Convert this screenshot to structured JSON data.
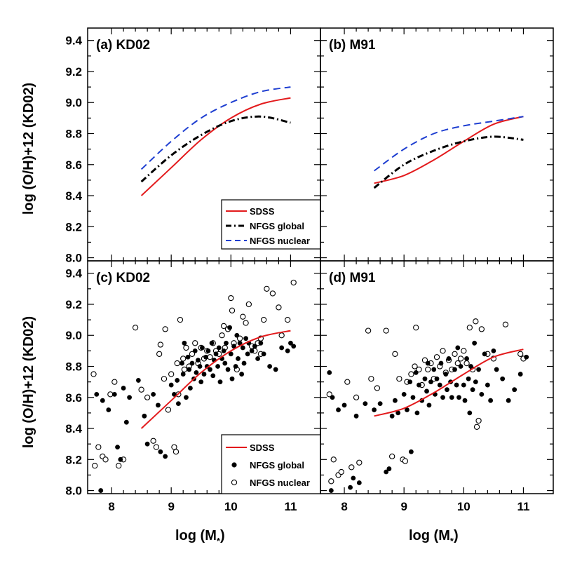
{
  "figure": {
    "ylabel": "log (O/H)+12 (KD02)",
    "xlabel_main": "log (M",
    "xlabel_sub": "*",
    "xlabel_close": ")",
    "x_ticks": [
      "8",
      "9",
      "10",
      "11"
    ],
    "y_ticks": [
      "8.0",
      "8.2",
      "8.4",
      "8.6",
      "8.8",
      "9.0",
      "9.2",
      "9.4"
    ]
  },
  "legend_top": {
    "items": [
      {
        "label": "SDSS",
        "style": "solid",
        "color": "#e31a1c"
      },
      {
        "label": "NFGS global",
        "style": "dashdot",
        "color": "#000000"
      },
      {
        "label": "NFGS nuclear",
        "style": "dashed",
        "color": "#1f3fd1"
      }
    ]
  },
  "legend_bottom": {
    "items": [
      {
        "label": "SDSS",
        "style": "solid",
        "color": "#e31a1c"
      },
      {
        "label": "NFGS global",
        "style": "filled-circle",
        "color": "#000000"
      },
      {
        "label": "NFGS nuclear",
        "style": "open-circle",
        "color": "#000000"
      }
    ]
  },
  "chart_data": [
    {
      "panel": "a",
      "type": "line",
      "title": "(a) KD02",
      "xlim": [
        7.6,
        11.5
      ],
      "ylim": [
        7.98,
        9.48
      ],
      "series": [
        {
          "name": "SDSS",
          "style": "solid",
          "color": "#e31a1c",
          "x": [
            8.5,
            9.0,
            9.5,
            10.0,
            10.5,
            11.0
          ],
          "y": [
            8.4,
            8.58,
            8.76,
            8.9,
            8.99,
            9.03
          ]
        },
        {
          "name": "NFGS global",
          "style": "dashdot",
          "color": "#000000",
          "x": [
            8.5,
            9.0,
            9.5,
            10.0,
            10.5,
            11.0
          ],
          "y": [
            8.49,
            8.66,
            8.79,
            8.88,
            8.91,
            8.87
          ]
        },
        {
          "name": "NFGS nuclear",
          "style": "dashed",
          "color": "#1f3fd1",
          "x": [
            8.5,
            9.0,
            9.5,
            10.0,
            10.5,
            11.0
          ],
          "y": [
            8.57,
            8.75,
            8.9,
            9.0,
            9.07,
            9.1
          ]
        }
      ]
    },
    {
      "panel": "b",
      "type": "line",
      "title": "(b) M91",
      "xlim": [
        7.6,
        11.5
      ],
      "ylim": [
        7.98,
        9.48
      ],
      "series": [
        {
          "name": "SDSS",
          "style": "solid",
          "color": "#e31a1c",
          "x": [
            8.5,
            9.0,
            9.5,
            10.0,
            10.5,
            11.0
          ],
          "y": [
            8.48,
            8.53,
            8.63,
            8.75,
            8.86,
            8.91
          ]
        },
        {
          "name": "NFGS global",
          "style": "dashdot",
          "color": "#000000",
          "x": [
            8.5,
            9.0,
            9.5,
            10.0,
            10.5,
            11.0
          ],
          "y": [
            8.45,
            8.6,
            8.69,
            8.75,
            8.78,
            8.76
          ]
        },
        {
          "name": "NFGS nuclear",
          "style": "dashed",
          "color": "#1f3fd1",
          "x": [
            8.5,
            9.0,
            9.5,
            10.0,
            10.5,
            11.0
          ],
          "y": [
            8.56,
            8.7,
            8.8,
            8.85,
            8.88,
            8.91
          ]
        }
      ]
    },
    {
      "panel": "c",
      "type": "scatter",
      "title": "(c) KD02",
      "xlim": [
        7.6,
        11.5
      ],
      "ylim": [
        7.98,
        9.48
      ],
      "sdss_curve": {
        "x": [
          8.5,
          9.0,
          9.5,
          10.0,
          10.5,
          11.0
        ],
        "y": [
          8.4,
          8.58,
          8.76,
          8.9,
          8.99,
          9.03
        ]
      },
      "global": [
        [
          7.75,
          8.62
        ],
        [
          7.82,
          8.0
        ],
        [
          7.85,
          8.58
        ],
        [
          7.95,
          8.52
        ],
        [
          8.05,
          8.62
        ],
        [
          8.1,
          8.28
        ],
        [
          8.15,
          8.2
        ],
        [
          8.2,
          8.66
        ],
        [
          8.25,
          8.44
        ],
        [
          8.3,
          8.6
        ],
        [
          8.45,
          8.71
        ],
        [
          8.55,
          8.48
        ],
        [
          8.6,
          8.3
        ],
        [
          8.7,
          8.62
        ],
        [
          8.78,
          8.55
        ],
        [
          8.82,
          8.25
        ],
        [
          8.9,
          8.22
        ],
        [
          9.0,
          8.68
        ],
        [
          9.05,
          8.62
        ],
        [
          9.1,
          8.71
        ],
        [
          9.12,
          8.56
        ],
        [
          9.18,
          8.82
        ],
        [
          9.2,
          8.75
        ],
        [
          9.22,
          8.95
        ],
        [
          9.25,
          8.6
        ],
        [
          9.28,
          8.86
        ],
        [
          9.3,
          8.78
        ],
        [
          9.32,
          8.66
        ],
        [
          9.35,
          8.82
        ],
        [
          9.38,
          8.72
        ],
        [
          9.4,
          8.9
        ],
        [
          9.42,
          8.76
        ],
        [
          9.45,
          8.84
        ],
        [
          9.48,
          8.8
        ],
        [
          9.5,
          8.7
        ],
        [
          9.52,
          8.92
        ],
        [
          9.55,
          8.75
        ],
        [
          9.58,
          8.86
        ],
        [
          9.6,
          8.8
        ],
        [
          9.62,
          8.9
        ],
        [
          9.65,
          8.78
        ],
        [
          9.68,
          8.95
        ],
        [
          9.7,
          8.74
        ],
        [
          9.72,
          8.84
        ],
        [
          9.75,
          8.88
        ],
        [
          9.78,
          8.8
        ],
        [
          9.8,
          8.92
        ],
        [
          9.82,
          8.7
        ],
        [
          9.85,
          8.85
        ],
        [
          9.88,
          8.9
        ],
        [
          9.9,
          8.82
        ],
        [
          9.92,
          8.95
        ],
        [
          9.95,
          8.78
        ],
        [
          9.98,
          9.05
        ],
        [
          10.0,
          8.88
        ],
        [
          10.02,
          8.72
        ],
        [
          10.05,
          8.93
        ],
        [
          10.08,
          8.8
        ],
        [
          10.1,
          9.0
        ],
        [
          10.12,
          8.85
        ],
        [
          10.15,
          8.95
        ],
        [
          10.18,
          8.75
        ],
        [
          10.2,
          8.92
        ],
        [
          10.22,
          8.82
        ],
        [
          10.25,
          8.98
        ],
        [
          10.28,
          8.88
        ],
        [
          10.3,
          8.95
        ],
        [
          10.35,
          8.9
        ],
        [
          10.4,
          8.93
        ],
        [
          10.45,
          8.85
        ],
        [
          10.5,
          8.95
        ],
        [
          10.55,
          8.88
        ],
        [
          10.65,
          8.8
        ],
        [
          10.75,
          8.78
        ],
        [
          10.85,
          8.92
        ],
        [
          10.95,
          8.9
        ],
        [
          11.0,
          8.95
        ],
        [
          11.05,
          8.93
        ]
      ],
      "nuclear": [
        [
          7.7,
          8.75
        ],
        [
          7.72,
          8.16
        ],
        [
          7.78,
          8.28
        ],
        [
          7.85,
          8.22
        ],
        [
          7.9,
          8.2
        ],
        [
          7.98,
          8.62
        ],
        [
          8.05,
          8.7
        ],
        [
          8.12,
          8.16
        ],
        [
          8.2,
          8.2
        ],
        [
          8.4,
          9.05
        ],
        [
          8.5,
          8.65
        ],
        [
          8.6,
          8.6
        ],
        [
          8.7,
          8.32
        ],
        [
          8.75,
          8.28
        ],
        [
          8.8,
          8.88
        ],
        [
          8.82,
          8.94
        ],
        [
          8.88,
          8.72
        ],
        [
          8.9,
          9.04
        ],
        [
          8.95,
          8.52
        ],
        [
          9.0,
          8.75
        ],
        [
          9.05,
          8.28
        ],
        [
          9.08,
          8.25
        ],
        [
          9.1,
          8.82
        ],
        [
          9.12,
          8.62
        ],
        [
          9.15,
          9.1
        ],
        [
          9.2,
          8.85
        ],
        [
          9.22,
          8.78
        ],
        [
          9.25,
          8.92
        ],
        [
          9.3,
          8.8
        ],
        [
          9.35,
          8.88
        ],
        [
          9.4,
          8.95
        ],
        [
          9.45,
          8.82
        ],
        [
          9.5,
          8.92
        ],
        [
          9.55,
          8.85
        ],
        [
          9.6,
          8.9
        ],
        [
          9.65,
          8.86
        ],
        [
          9.7,
          8.95
        ],
        [
          9.75,
          8.9
        ],
        [
          9.8,
          8.88
        ],
        [
          9.85,
          9.0
        ],
        [
          9.9,
          8.92
        ],
        [
          9.95,
          9.04
        ],
        [
          10.0,
          9.24
        ],
        [
          10.02,
          9.16
        ],
        [
          10.05,
          8.95
        ],
        [
          10.1,
          8.78
        ],
        [
          10.15,
          8.98
        ],
        [
          10.2,
          9.12
        ],
        [
          10.25,
          9.08
        ],
        [
          10.3,
          9.2
        ],
        [
          10.35,
          8.93
        ],
        [
          10.4,
          8.9
        ],
        [
          10.45,
          8.95
        ],
        [
          10.5,
          8.98
        ],
        [
          10.55,
          9.1
        ],
        [
          10.6,
          9.3
        ],
        [
          10.7,
          9.27
        ],
        [
          10.8,
          9.18
        ],
        [
          10.85,
          9.0
        ],
        [
          10.95,
          9.1
        ],
        [
          11.05,
          9.34
        ],
        [
          10.5,
          8.88
        ],
        [
          9.88,
          9.06
        ]
      ]
    },
    {
      "panel": "d",
      "type": "scatter",
      "title": "(d) M91",
      "xlim": [
        7.6,
        11.5
      ],
      "ylim": [
        7.98,
        9.48
      ],
      "sdss_curve": {
        "x": [
          8.5,
          9.0,
          9.5,
          10.0,
          10.5,
          11.0
        ],
        "y": [
          8.48,
          8.53,
          8.63,
          8.75,
          8.86,
          8.91
        ]
      },
      "global": [
        [
          7.75,
          8.76
        ],
        [
          7.78,
          8.0
        ],
        [
          7.8,
          8.6
        ],
        [
          7.9,
          8.52
        ],
        [
          8.0,
          8.55
        ],
        [
          8.1,
          8.02
        ],
        [
          8.15,
          8.08
        ],
        [
          8.2,
          8.48
        ],
        [
          8.25,
          8.05
        ],
        [
          8.35,
          8.56
        ],
        [
          8.5,
          8.52
        ],
        [
          8.6,
          8.56
        ],
        [
          8.7,
          8.12
        ],
        [
          8.75,
          8.14
        ],
        [
          8.8,
          8.48
        ],
        [
          8.85,
          8.58
        ],
        [
          8.9,
          8.5
        ],
        [
          9.0,
          8.62
        ],
        [
          9.05,
          8.52
        ],
        [
          9.1,
          8.7
        ],
        [
          9.12,
          8.25
        ],
        [
          9.15,
          8.6
        ],
        [
          9.2,
          8.76
        ],
        [
          9.22,
          8.5
        ],
        [
          9.25,
          8.68
        ],
        [
          9.3,
          8.58
        ],
        [
          9.35,
          8.72
        ],
        [
          9.38,
          8.64
        ],
        [
          9.4,
          8.82
        ],
        [
          9.42,
          8.55
        ],
        [
          9.45,
          8.7
        ],
        [
          9.5,
          8.78
        ],
        [
          9.52,
          8.62
        ],
        [
          9.55,
          8.72
        ],
        [
          9.6,
          8.68
        ],
        [
          9.62,
          8.82
        ],
        [
          9.65,
          8.6
        ],
        [
          9.7,
          8.75
        ],
        [
          9.72,
          8.65
        ],
        [
          9.75,
          8.85
        ],
        [
          9.78,
          8.7
        ],
        [
          9.8,
          8.6
        ],
        [
          9.85,
          8.78
        ],
        [
          9.88,
          8.68
        ],
        [
          9.9,
          8.92
        ],
        [
          9.92,
          8.6
        ],
        [
          9.95,
          8.8
        ],
        [
          10.0,
          8.68
        ],
        [
          10.02,
          8.58
        ],
        [
          10.05,
          8.85
        ],
        [
          10.08,
          8.72
        ],
        [
          10.1,
          8.5
        ],
        [
          10.12,
          8.8
        ],
        [
          10.15,
          8.65
        ],
        [
          10.18,
          8.95
        ],
        [
          10.2,
          8.7
        ],
        [
          10.25,
          8.78
        ],
        [
          10.3,
          8.62
        ],
        [
          10.35,
          8.88
        ],
        [
          10.4,
          8.68
        ],
        [
          10.45,
          8.58
        ],
        [
          10.5,
          8.9
        ],
        [
          10.55,
          8.78
        ],
        [
          10.65,
          8.72
        ],
        [
          10.75,
          8.58
        ],
        [
          10.85,
          8.65
        ],
        [
          10.95,
          8.75
        ],
        [
          11.05,
          8.86
        ]
      ],
      "nuclear": [
        [
          7.75,
          8.62
        ],
        [
          7.78,
          8.06
        ],
        [
          7.82,
          8.2
        ],
        [
          7.9,
          8.1
        ],
        [
          7.95,
          8.12
        ],
        [
          8.05,
          8.7
        ],
        [
          8.12,
          8.15
        ],
        [
          8.2,
          8.6
        ],
        [
          8.25,
          8.18
        ],
        [
          8.4,
          9.03
        ],
        [
          8.45,
          8.72
        ],
        [
          8.55,
          8.66
        ],
        [
          8.7,
          9.03
        ],
        [
          8.8,
          8.22
        ],
        [
          8.85,
          8.88
        ],
        [
          8.92,
          8.72
        ],
        [
          8.98,
          8.2
        ],
        [
          9.02,
          8.19
        ],
        [
          9.05,
          8.7
        ],
        [
          9.12,
          8.75
        ],
        [
          9.18,
          8.8
        ],
        [
          9.2,
          9.05
        ],
        [
          9.25,
          8.78
        ],
        [
          9.3,
          8.68
        ],
        [
          9.35,
          8.84
        ],
        [
          9.4,
          8.78
        ],
        [
          9.45,
          8.82
        ],
        [
          9.5,
          8.72
        ],
        [
          9.55,
          8.86
        ],
        [
          9.6,
          8.8
        ],
        [
          9.65,
          8.9
        ],
        [
          9.7,
          8.76
        ],
        [
          9.75,
          8.84
        ],
        [
          9.8,
          8.78
        ],
        [
          9.85,
          8.88
        ],
        [
          9.9,
          8.82
        ],
        [
          9.95,
          8.85
        ],
        [
          10.0,
          8.9
        ],
        [
          10.05,
          8.82
        ],
        [
          10.1,
          9.05
        ],
        [
          10.15,
          8.78
        ],
        [
          10.2,
          9.09
        ],
        [
          10.22,
          8.41
        ],
        [
          10.25,
          8.45
        ],
        [
          10.3,
          9.04
        ],
        [
          10.4,
          8.88
        ],
        [
          10.5,
          8.85
        ],
        [
          10.7,
          9.07
        ],
        [
          10.95,
          8.88
        ],
        [
          11.0,
          8.85
        ]
      ]
    }
  ]
}
